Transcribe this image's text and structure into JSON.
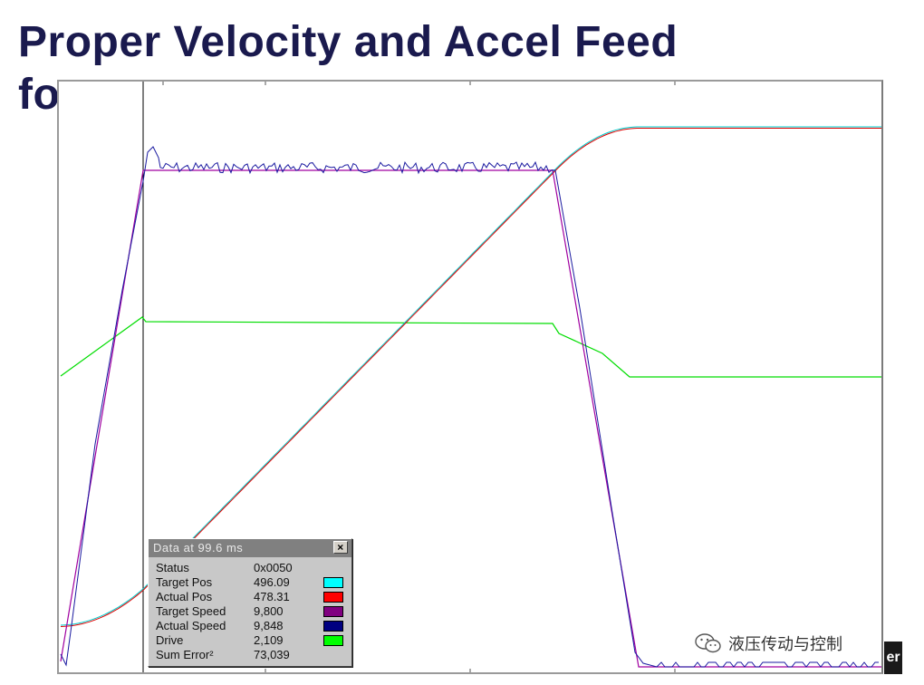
{
  "slide": {
    "title_line1": "Proper Velocity and Accel Feed",
    "title_line2": "fo"
  },
  "scope": {
    "traces": [
      {
        "name": "Target Pos",
        "color": "#00ffff"
      },
      {
        "name": "Actual Pos",
        "color": "#ff0000"
      },
      {
        "name": "Target Speed",
        "color": "#800080"
      },
      {
        "name": "Actual Speed",
        "color": "#000080"
      },
      {
        "name": "Drive",
        "color": "#00ff00"
      }
    ]
  },
  "popup": {
    "title": "Data at 99.6 ms",
    "close_glyph": "×",
    "rows": [
      {
        "label": "Status",
        "value": "0x0050",
        "color": ""
      },
      {
        "label": "Target Pos",
        "value": "496.09",
        "color": "#00ffff"
      },
      {
        "label": "Actual Pos",
        "value": "478.31",
        "color": "#ff0000"
      },
      {
        "label": "Target Speed",
        "value": "9,800",
        "color": "#800080"
      },
      {
        "label": "Actual Speed",
        "value": "9,848",
        "color": "#000080"
      },
      {
        "label": "Drive",
        "value": "2,109",
        "color": "#00ff00"
      },
      {
        "label": "Sum Error²",
        "value": "73,039",
        "color": ""
      }
    ]
  },
  "watermark": {
    "text": "液压传动与控制",
    "icon": "wechat-icon"
  },
  "corner": {
    "text": "er"
  }
}
